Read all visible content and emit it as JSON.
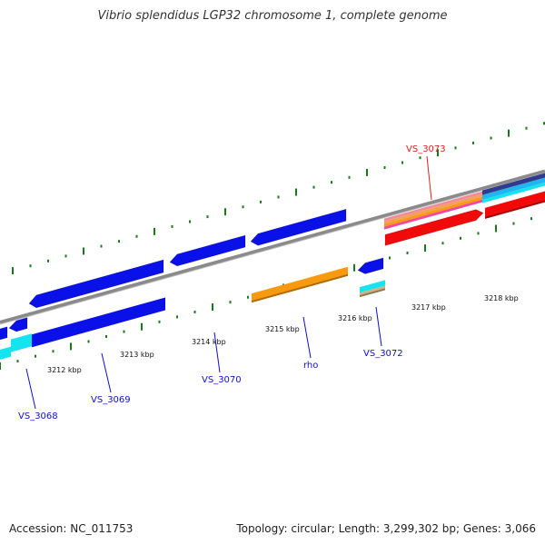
{
  "title": "Vibrio splendidus LGP32 chromosome 1, complete genome",
  "footer": {
    "accession": "Accession: NC_011753",
    "topology": "Topology: circular; Length: 3,299,302 bp; Genes: 3,066"
  },
  "colors": {
    "background": "#ffffff",
    "backbone": "#8a8a8a",
    "tick": "#1a7a1a",
    "gene_blue": "#0a10e8",
    "gene_cyan": "#14e4f0",
    "gene_orange": "#f89a10",
    "gene_red": "#f20a0a",
    "label_blue": "#1010c8",
    "label_red": "#e02020"
  },
  "kbp_labels": [
    "3212 kbp",
    "3213 kbp",
    "3214 kbp",
    "3215 kbp",
    "3216 kbp",
    "3217 kbp",
    "3218 kbp"
  ],
  "gene_labels": [
    {
      "name": "VS_3068",
      "color": "blue"
    },
    {
      "name": "VS_3069",
      "color": "blue"
    },
    {
      "name": "VS_3070",
      "color": "blue"
    },
    {
      "name": "rho",
      "color": "blue"
    },
    {
      "name": "VS_3072",
      "color": "blue"
    },
    {
      "name": "VS_3073",
      "color": "red"
    }
  ]
}
